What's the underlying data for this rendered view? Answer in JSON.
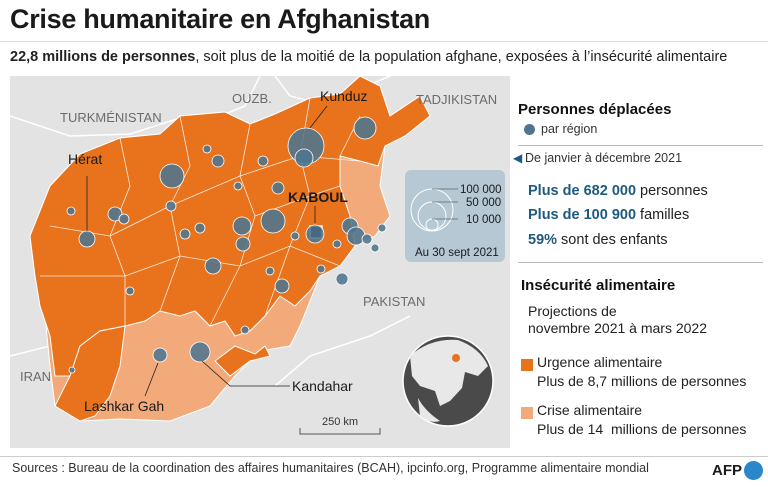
{
  "title": "Crise humanitaire en Afghanistan",
  "subtitle": {
    "bold": "22,8 millions de personnes",
    "rest": ", soit plus de la moitié de la population afghane, exposées à l’insécurité alimentaire"
  },
  "map": {
    "countries": [
      "TURKMÉNISTAN",
      "OUZB.",
      "TADJIKISTAN",
      "IRAN",
      "PAKISTAN"
    ],
    "cities": [
      "Kunduz",
      "Hérat",
      "KABOUL",
      "Kandahar",
      "Lashkar Gah"
    ],
    "scale_label": "250 km",
    "bubble_legend": {
      "values": [
        "100 000",
        "50 000",
        "10 000"
      ],
      "date": "Au 30 sept 2021"
    },
    "colors": {
      "urgence": "#e8731c",
      "crise": "#f3aa7a",
      "bubble": "#4d7590",
      "neighbor": "#e3e3e3"
    }
  },
  "legend": {
    "displaced": {
      "heading": "Personnes déplacées",
      "per_region": "par région",
      "period": "De janvier à décembre 2021",
      "stats": [
        {
          "value": "Plus de 682 000",
          "label": " personnes"
        },
        {
          "value": "Plus de 100 900",
          "label": " familles"
        },
        {
          "value": "59%",
          "label": " sont des enfants"
        }
      ]
    },
    "food": {
      "heading": "Insécurité alimentaire",
      "projection_line1": "Projections de",
      "projection_line2": "novembre 2021 à mars 2022",
      "urgence_label": "Urgence alimentaire",
      "urgence_detail": "Plus de 8,7 millions de personnes",
      "crise_label": "Crise alimentaire",
      "crise_detail": "Plus de 14  millions de personnes"
    }
  },
  "footer": {
    "sources": "Sources : Bureau de la coordination des affaires humanitaires (BCAH), ipcinfo.org, Programme alimentaire mondial",
    "credit": "AFP"
  }
}
